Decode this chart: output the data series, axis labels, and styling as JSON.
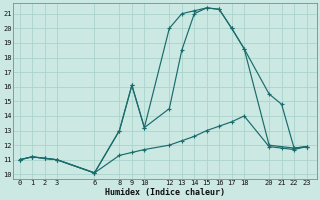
{
  "xlabel": "Humidex (Indice chaleur)",
  "bg_color": "#cbe8e3",
  "line_color": "#1a6b6b",
  "grid_color": "#aad4cc",
  "xticks": [
    0,
    1,
    2,
    3,
    6,
    8,
    9,
    10,
    12,
    13,
    14,
    15,
    16,
    17,
    18,
    20,
    21,
    22,
    23
  ],
  "yticks": [
    10,
    11,
    12,
    13,
    14,
    15,
    16,
    17,
    18,
    19,
    20,
    21
  ],
  "xlim": [
    -0.5,
    23.8
  ],
  "ylim": [
    9.7,
    21.7
  ],
  "lines": [
    {
      "x": [
        0,
        1,
        2,
        3,
        6,
        8,
        9,
        10,
        12,
        13,
        14,
        15,
        16,
        17,
        18,
        20,
        22,
        23
      ],
      "y": [
        11,
        11.2,
        11.1,
        11.0,
        10.1,
        13.0,
        16.1,
        13.2,
        20.0,
        21.0,
        21.2,
        21.4,
        21.3,
        20.0,
        18.6,
        12.0,
        11.8,
        11.9
      ]
    },
    {
      "x": [
        0,
        1,
        2,
        3,
        6,
        8,
        9,
        10,
        12,
        13,
        14,
        15,
        16,
        17,
        18,
        20,
        21,
        22,
        23
      ],
      "y": [
        11,
        11.2,
        11.1,
        11.0,
        10.1,
        13.0,
        16.1,
        13.2,
        14.5,
        18.5,
        21.0,
        21.4,
        21.3,
        20.0,
        18.6,
        15.5,
        14.8,
        11.8,
        11.9
      ]
    },
    {
      "x": [
        0,
        1,
        2,
        3,
        6,
        8,
        9,
        10,
        12,
        13,
        14,
        15,
        16,
        17,
        18,
        20,
        21,
        22,
        23
      ],
      "y": [
        11,
        11.2,
        11.1,
        11.0,
        10.1,
        11.3,
        11.5,
        11.7,
        12.0,
        12.3,
        12.6,
        13.0,
        13.3,
        13.6,
        14.0,
        11.9,
        11.8,
        11.7,
        11.9
      ]
    }
  ]
}
